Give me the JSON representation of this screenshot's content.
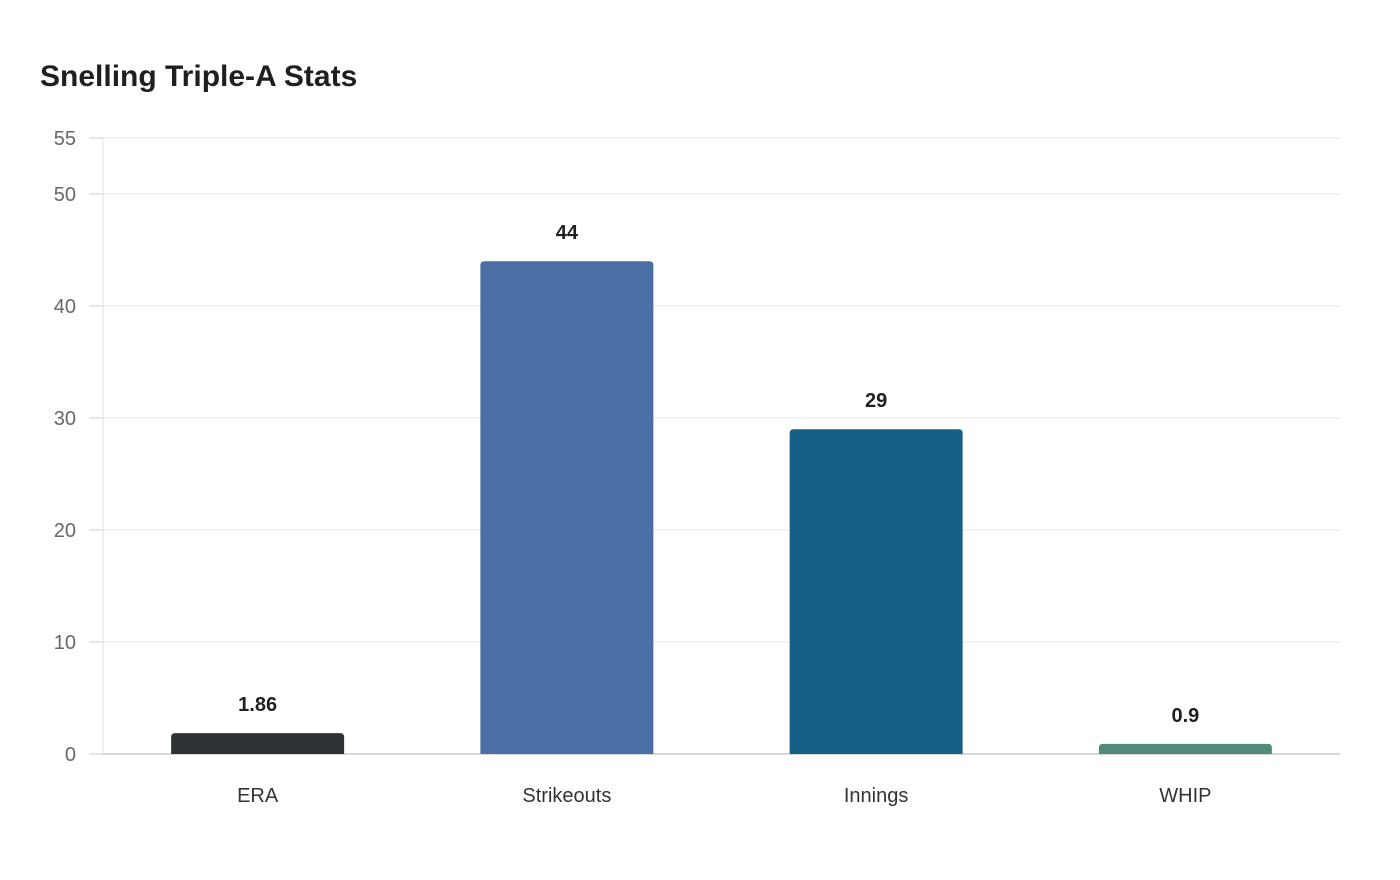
{
  "chart_data": {
    "type": "bar",
    "title": "Snelling Triple-A Stats",
    "xlabel": "",
    "ylabel": "",
    "categories": [
      "ERA",
      "Strikeouts",
      "Innings",
      "WHIP"
    ],
    "values": [
      1.86,
      44,
      29,
      0.9
    ],
    "data_labels": [
      "1.86",
      "44",
      "29",
      "0.9"
    ],
    "colors": [
      "#2e3436",
      "#4a6fa5",
      "#166088",
      "#4f8a7a"
    ],
    "ylim": [
      0,
      55
    ],
    "yticks": [
      0,
      10,
      20,
      30,
      40,
      50,
      55
    ],
    "grid": true,
    "legend": "none"
  }
}
